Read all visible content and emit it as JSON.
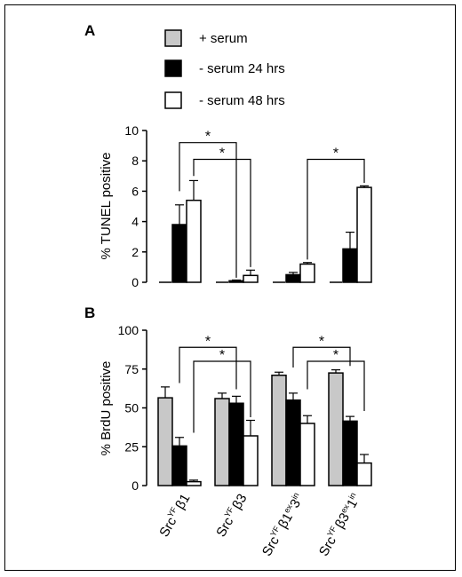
{
  "panels": {
    "a": "A",
    "b": "B"
  },
  "legend": [
    {
      "label": "+ serum",
      "color": "#c8c8c8"
    },
    {
      "label": "- serum 24 hrs",
      "color": "#000000"
    },
    {
      "label": "- serum 48 hrs",
      "color": "#ffffff"
    }
  ],
  "categories": [
    {
      "base": "Src",
      "sup1": "YF",
      "greek": "β1",
      "rest": []
    },
    {
      "base": "Src",
      "sup1": "YF",
      "greek": "β3",
      "rest": []
    },
    {
      "base": "Src",
      "sup1": "YF",
      "greek": "β1",
      "rest": [
        [
          "sup",
          "ex"
        ],
        [
          "txt",
          "3"
        ],
        [
          "sup",
          "in"
        ]
      ]
    },
    {
      "base": "Src",
      "sup1": "YF",
      "greek": "β3",
      "rest": [
        [
          "sup",
          "ex"
        ],
        [
          "txt",
          "1"
        ],
        [
          "sup",
          "in"
        ]
      ]
    }
  ],
  "significance_marker": "*",
  "chart_data": [
    {
      "type": "bar",
      "panel": "A",
      "ylabel": "% TUNEL positive",
      "ylim": [
        0,
        10
      ],
      "yticks": [
        0,
        2,
        4,
        6,
        8,
        10
      ],
      "series": [
        {
          "name": "+ serum",
          "values": [
            0,
            0,
            0,
            0
          ],
          "errors": [
            0,
            0,
            0,
            0
          ]
        },
        {
          "name": "- serum 24 hrs",
          "values": [
            3.8,
            0.1,
            0.5,
            2.2
          ],
          "errors": [
            1.3,
            0.05,
            0.15,
            1.1
          ]
        },
        {
          "name": "- serum 48 hrs",
          "values": [
            5.4,
            0.45,
            1.2,
            6.25
          ],
          "errors": [
            1.3,
            0.35,
            0.1,
            0.1
          ]
        }
      ],
      "significance": [
        {
          "from": 0,
          "to": 1,
          "yData": 9.2,
          "bottoms": [
            6.0,
            0.3
          ]
        },
        {
          "from": 0.25,
          "to": 1.25,
          "yData": 8.1,
          "bottoms": [
            7.0,
            1.0
          ]
        },
        {
          "from": 2.25,
          "to": 3.25,
          "yData": 8.1,
          "bottoms": [
            1.5,
            6.55
          ]
        }
      ]
    },
    {
      "type": "bar",
      "panel": "B",
      "ylabel": "% BrdU positive",
      "ylim": [
        0,
        100
      ],
      "yticks": [
        0,
        25,
        50,
        75,
        100
      ],
      "series": [
        {
          "name": "+ serum",
          "values": [
            56.5,
            56,
            71,
            72.5
          ],
          "errors": [
            7,
            3.5,
            2,
            2
          ]
        },
        {
          "name": "- serum 24 hrs",
          "values": [
            25.5,
            53,
            55,
            41.5
          ],
          "errors": [
            5.5,
            4.5,
            4.5,
            3
          ]
        },
        {
          "name": "- serum 48 hrs",
          "values": [
            2.5,
            32,
            40,
            14.5
          ],
          "errors": [
            1,
            10,
            5,
            5.5
          ]
        }
      ],
      "significance": [
        {
          "from": 0,
          "to": 1,
          "yData": 89,
          "bottoms": [
            66,
            62
          ]
        },
        {
          "from": 0.25,
          "to": 1.25,
          "yData": 80,
          "bottoms": [
            34,
            44
          ]
        },
        {
          "from": 2,
          "to": 3,
          "yData": 89,
          "bottoms": [
            76,
            77
          ]
        },
        {
          "from": 2.25,
          "to": 3.25,
          "yData": 80,
          "bottoms": [
            62,
            48
          ]
        }
      ]
    }
  ]
}
